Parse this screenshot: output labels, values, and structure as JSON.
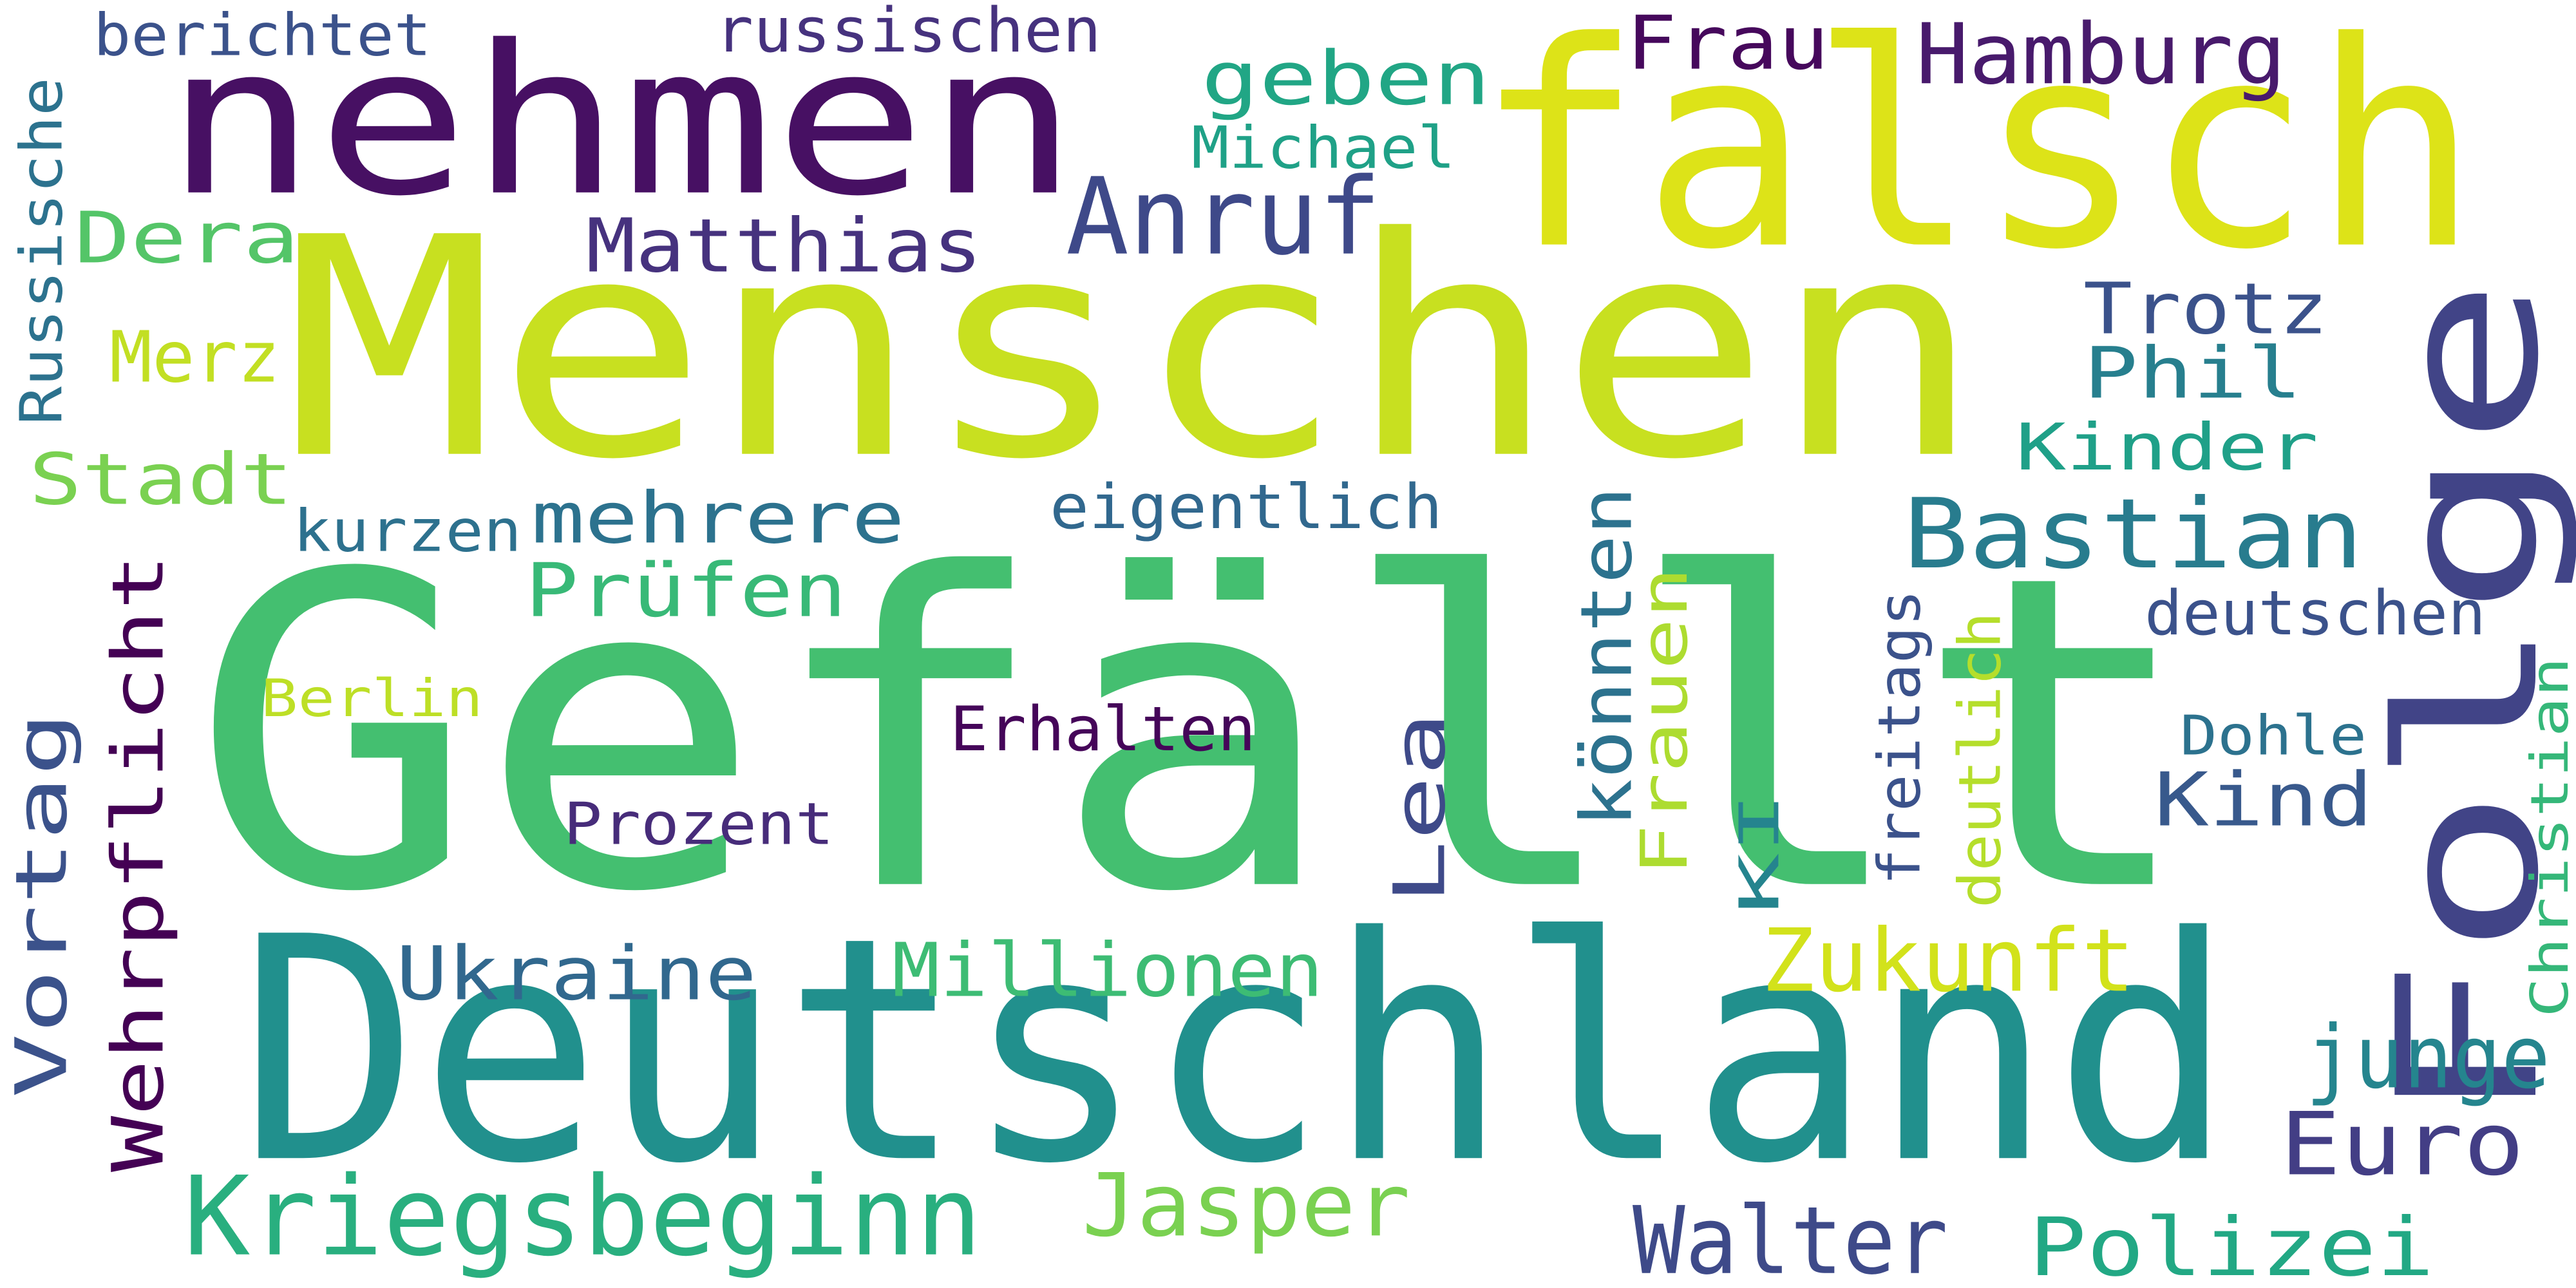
{
  "words": [
    {
      "text": "Gefällt",
      "color": "#44bf70",
      "rotated": false
    },
    {
      "text": "Menschen",
      "color": "#c8e020",
      "rotated": false
    },
    {
      "text": "Deutschland",
      "color": "#21908d",
      "rotated": false
    },
    {
      "text": "falsch",
      "color": "#dde318",
      "rotated": false
    },
    {
      "text": "nehmen",
      "color": "#471063",
      "rotated": false
    },
    {
      "text": "Folge",
      "color": "#414487",
      "rotated": true
    },
    {
      "text": "Kriegsbeginn",
      "color": "#29af7f",
      "rotated": false
    },
    {
      "text": "Bastian",
      "color": "#287c8e",
      "rotated": false
    },
    {
      "text": "Anruf",
      "color": "#3e4989",
      "rotated": false
    },
    {
      "text": "Walter",
      "color": "#3e4a89",
      "rotated": false
    },
    {
      "text": "Polizei",
      "color": "#22a884",
      "rotated": false
    },
    {
      "text": "Jasper",
      "color": "#7ad151",
      "rotated": false
    },
    {
      "text": "Zukunft",
      "color": "#d2e21b",
      "rotated": false
    },
    {
      "text": "Millionen",
      "color": "#3dbc74",
      "rotated": false
    },
    {
      "text": "Ukraine",
      "color": "#31688e",
      "rotated": false
    },
    {
      "text": "Euro",
      "color": "#433e85",
      "rotated": false
    },
    {
      "text": "junge",
      "color": "#25858e",
      "rotated": false
    },
    {
      "text": "Hamburg",
      "color": "#481a6c",
      "rotated": false
    },
    {
      "text": "geben",
      "color": "#21a685",
      "rotated": false
    },
    {
      "text": "Frau",
      "color": "#46085c",
      "rotated": false
    },
    {
      "text": "Matthias",
      "color": "#46327e",
      "rotated": false
    },
    {
      "text": "mehrere",
      "color": "#2c728e",
      "rotated": false
    },
    {
      "text": "Prüfen",
      "color": "#38b977",
      "rotated": false
    },
    {
      "text": "Phil",
      "color": "#277f8e",
      "rotated": false
    },
    {
      "text": "Trotz",
      "color": "#3b528b",
      "rotated": false
    },
    {
      "text": "Kinder",
      "color": "#1fa088",
      "rotated": false
    },
    {
      "text": "Kind",
      "color": "#38598c",
      "rotated": false
    },
    {
      "text": "Dera",
      "color": "#54c568",
      "rotated": false
    },
    {
      "text": "Merz",
      "color": "#c2df23",
      "rotated": false
    },
    {
      "text": "Stadt",
      "color": "#7ad151",
      "rotated": false
    },
    {
      "text": "Wehrpflicht",
      "color": "#440154",
      "rotated": true
    },
    {
      "text": "Vortag",
      "color": "#3b528b",
      "rotated": true
    },
    {
      "text": "Lea",
      "color": "#3e4a89",
      "rotated": true
    },
    {
      "text": "könnten",
      "color": "#2c728e",
      "rotated": true
    },
    {
      "text": "Frauen",
      "color": "#addc30",
      "rotated": true
    },
    {
      "text": "berichtet",
      "color": "#3b528b",
      "rotated": false
    },
    {
      "text": "russischen",
      "color": "#46327e",
      "rotated": false
    },
    {
      "text": "Michael",
      "color": "#1fa187",
      "rotated": false
    },
    {
      "text": "eigentlich",
      "color": "#31688e",
      "rotated": false
    },
    {
      "text": "kurzen",
      "color": "#2d718e",
      "rotated": false
    },
    {
      "text": "Berlin",
      "color": "#bddf26",
      "rotated": false
    },
    {
      "text": "Erhalten",
      "color": "#450559",
      "rotated": false
    },
    {
      "text": "Prozent",
      "color": "#472c7a",
      "rotated": false
    },
    {
      "text": "deutschen",
      "color": "#3b528b",
      "rotated": false
    },
    {
      "text": "Dohle",
      "color": "#2c728e",
      "rotated": false
    },
    {
      "text": "Russische",
      "color": "#2c728e",
      "rotated": true
    },
    {
      "text": "KI",
      "color": "#25848e",
      "rotated": true
    },
    {
      "text": "freitags",
      "color": "#3b528b",
      "rotated": true
    },
    {
      "text": "deutlich",
      "color": "#b5de2b",
      "rotated": true
    },
    {
      "text": "Christian",
      "color": "#35b779",
      "rotated": true
    }
  ]
}
